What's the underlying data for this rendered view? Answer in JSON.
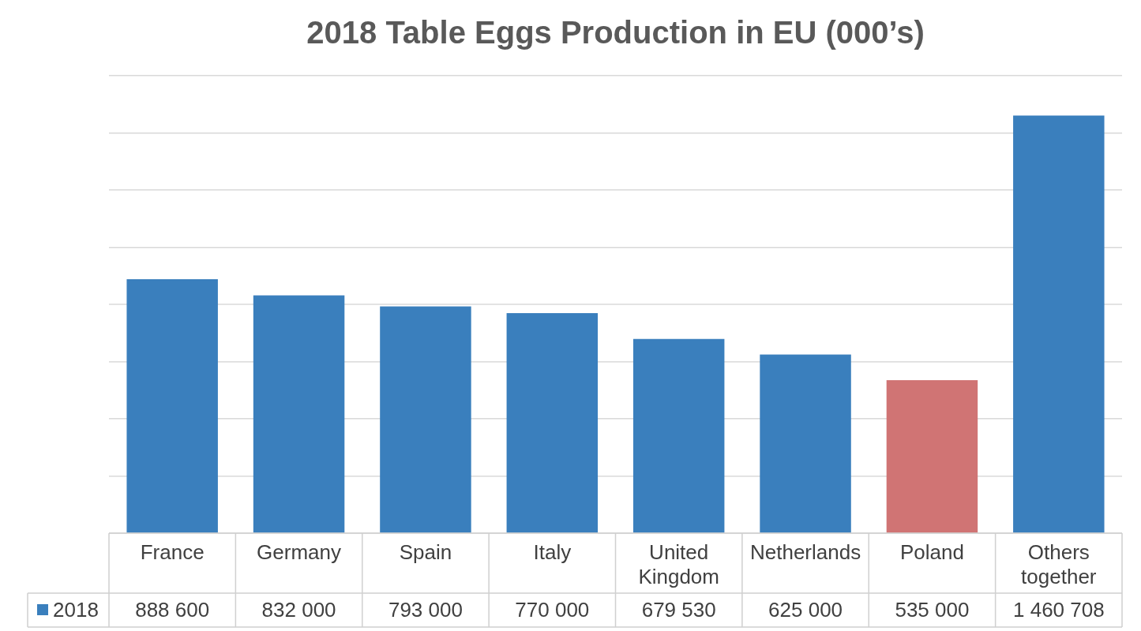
{
  "chart_data": {
    "type": "bar",
    "title": "2018 Table Eggs Production in EU (000’s)",
    "categories": [
      "France",
      "Germany",
      "Spain",
      "Italy",
      "United Kingdom",
      "Netherlands",
      "Poland",
      "Others together"
    ],
    "series": [
      {
        "name": "2018",
        "color": "#3a7fbd",
        "colors": [
          "#3a7fbd",
          "#3a7fbd",
          "#3a7fbd",
          "#3a7fbd",
          "#3a7fbd",
          "#3a7fbd",
          "#d07474",
          "#3a7fbd"
        ],
        "values": [
          888600,
          832000,
          793000,
          770000,
          679530,
          625000,
          535000,
          1460708
        ],
        "value_labels": [
          "888 600",
          "832 000",
          "793 000",
          "770 000",
          "679 530",
          "625 000",
          "535 000",
          "1 460 708"
        ]
      }
    ],
    "ylim": [
      0,
      1600000
    ],
    "yticks": [
      {
        "value": 0,
        "label": null
      },
      {
        "value": 200000,
        "label": null
      },
      {
        "value": 400000,
        "label": null
      },
      {
        "value": 600000,
        "label": null
      },
      {
        "value": 800000,
        "label": null
      },
      {
        "value": 1000000,
        "label": null
      },
      {
        "value": 1200000,
        "label": null
      },
      {
        "value": 1400000,
        "label": null
      },
      {
        "value": 1600000,
        "label": null
      }
    ],
    "tick_labels": "x",
    "grid": "y",
    "legend": "bottom left"
  }
}
